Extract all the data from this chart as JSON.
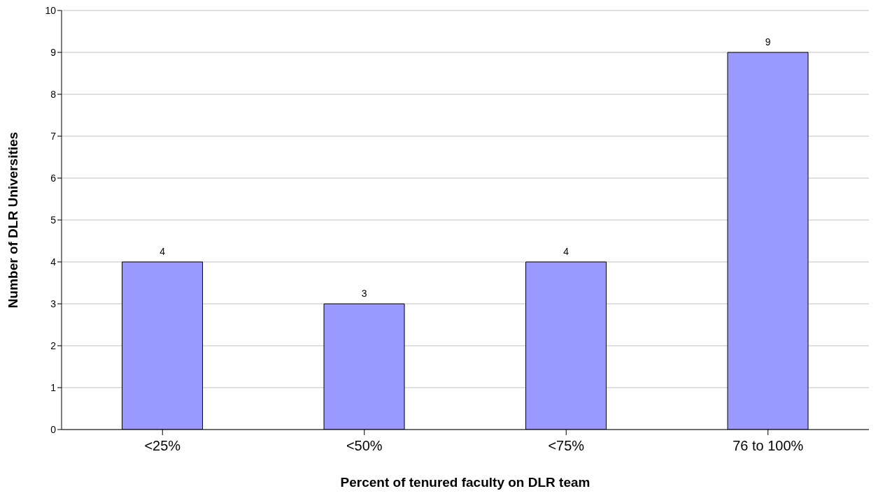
{
  "chart_data": {
    "type": "bar",
    "xlabel": "Percent of tenured faculty on DLR team",
    "ylabel": "Number of DLR Universities",
    "categories": [
      "<25%",
      "<50%",
      "<75%",
      "76 to 100%"
    ],
    "values": [
      4,
      3,
      4,
      9
    ],
    "color": "#9999ff",
    "ylim": [
      0,
      10
    ],
    "yticks": [
      0,
      1,
      2,
      3,
      4,
      5,
      6,
      7,
      8,
      9,
      10
    ],
    "grid": "y",
    "data_labels": true
  }
}
